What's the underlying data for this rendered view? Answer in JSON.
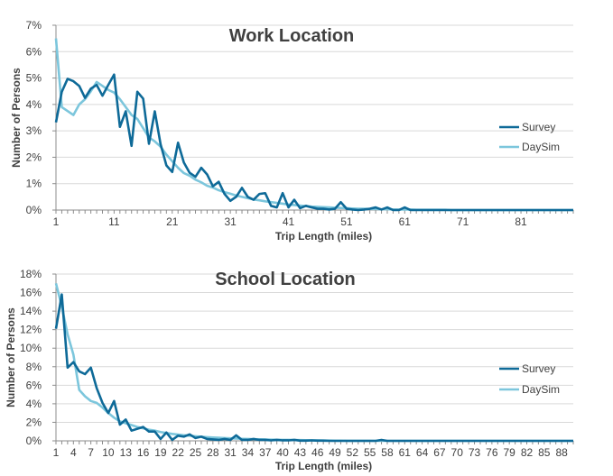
{
  "colors": {
    "survey": "#0e6a98",
    "daysim": "#7cc6dc",
    "grid": "#d9d9d9",
    "axis": "#8c8c8c"
  },
  "chart_data": [
    {
      "type": "line",
      "title": "Work Location",
      "xlabel": "Trip Length (miles)",
      "ylabel": "Number of Persons",
      "xlim": [
        1,
        90
      ],
      "ylim": [
        0,
        7
      ],
      "yticks": [
        "0%",
        "1%",
        "2%",
        "3%",
        "4%",
        "5%",
        "6%",
        "7%"
      ],
      "xtick_labels": [
        "1",
        "11",
        "21",
        "31",
        "41",
        "51",
        "61",
        "71",
        "81"
      ],
      "xtick_step": 10,
      "legend_position": "right",
      "grid": true,
      "series": [
        {
          "name": "Survey",
          "values": [
            3.32,
            4.48,
            4.97,
            4.88,
            4.7,
            4.25,
            4.6,
            4.74,
            4.33,
            4.74,
            5.13,
            3.15,
            3.74,
            2.43,
            4.48,
            4.22,
            2.51,
            3.74,
            2.49,
            1.69,
            1.44,
            2.55,
            1.8,
            1.41,
            1.26,
            1.6,
            1.35,
            0.9,
            1.07,
            0.61,
            0.35,
            0.5,
            0.84,
            0.5,
            0.39,
            0.61,
            0.64,
            0.16,
            0.1,
            0.64,
            0.1,
            0.39,
            0.07,
            0.16,
            0.1,
            0.05,
            0.05,
            0.02,
            0.05,
            0.3,
            0.05,
            0.02,
            0,
            0.02,
            0.05,
            0.1,
            0.02,
            0.1,
            0,
            0,
            0.1,
            0,
            0,
            0,
            0,
            0,
            0,
            0,
            0,
            0,
            0,
            0,
            0,
            0,
            0,
            0,
            0,
            0,
            0,
            0,
            0,
            0,
            0,
            0,
            0,
            0,
            0,
            0,
            0,
            0
          ]
        },
        {
          "name": "DaySim",
          "values": [
            6.5,
            3.9,
            3.75,
            3.6,
            4.0,
            4.2,
            4.5,
            4.85,
            4.7,
            4.55,
            4.45,
            4.2,
            3.9,
            3.6,
            3.45,
            3.1,
            2.75,
            2.6,
            2.4,
            2.1,
            1.85,
            1.6,
            1.4,
            1.3,
            1.15,
            1.05,
            0.92,
            0.85,
            0.75,
            0.68,
            0.62,
            0.55,
            0.5,
            0.45,
            0.4,
            0.37,
            0.33,
            0.3,
            0.27,
            0.24,
            0.21,
            0.19,
            0.17,
            0.15,
            0.13,
            0.12,
            0.11,
            0.1,
            0.09,
            0.08,
            0.07,
            0.06,
            0.05,
            0.05,
            0.04,
            0.04,
            0.03,
            0.03,
            0.02,
            0.02,
            0.02,
            0.02,
            0.01,
            0.01,
            0.01,
            0.01,
            0.01,
            0.01,
            0,
            0,
            0,
            0,
            0,
            0,
            0,
            0,
            0,
            0,
            0,
            0,
            0,
            0,
            0,
            0,
            0,
            0,
            0,
            0,
            0,
            0
          ]
        }
      ]
    },
    {
      "type": "line",
      "title": "School Location",
      "xlabel": "Trip Length (miles)",
      "ylabel": "Number of Persons",
      "xlim": [
        1,
        90
      ],
      "ylim": [
        0,
        18
      ],
      "yticks": [
        "0%",
        "2%",
        "4%",
        "6%",
        "8%",
        "10%",
        "12%",
        "14%",
        "16%",
        "18%"
      ],
      "xtick_labels": [
        "1",
        "4",
        "7",
        "10",
        "13",
        "16",
        "19",
        "22",
        "25",
        "28",
        "31",
        "34",
        "37",
        "40",
        "43",
        "46",
        "49",
        "52",
        "55",
        "58",
        "61",
        "64",
        "67",
        "70",
        "73",
        "76",
        "79",
        "82",
        "85",
        "88"
      ],
      "xtick_step": 3,
      "legend_position": "right",
      "grid": true,
      "series": [
        {
          "name": "Survey",
          "values": [
            12.1,
            15.8,
            7.9,
            8.5,
            7.5,
            7.2,
            7.9,
            5.7,
            4.1,
            3.0,
            4.3,
            1.75,
            2.3,
            1.1,
            1.3,
            1.5,
            1.0,
            1.0,
            0.2,
            0.9,
            0.1,
            0.55,
            0.45,
            0.7,
            0.3,
            0.45,
            0.2,
            0.15,
            0.1,
            0.2,
            0.1,
            0.6,
            0.1,
            0.1,
            0.2,
            0.1,
            0.1,
            0.05,
            0.1,
            0.05,
            0.05,
            0.1,
            0.02,
            0.02,
            0.05,
            0.02,
            0.02,
            0,
            0,
            0,
            0,
            0,
            0,
            0,
            0,
            0,
            0.1,
            0,
            0,
            0,
            0,
            0,
            0,
            0,
            0,
            0,
            0,
            0,
            0,
            0,
            0,
            0,
            0,
            0,
            0,
            0,
            0,
            0,
            0,
            0,
            0,
            0,
            0,
            0,
            0,
            0,
            0,
            0,
            0,
            0
          ]
        },
        {
          "name": "DaySim",
          "values": [
            17.0,
            14.5,
            11.5,
            9.3,
            5.5,
            4.8,
            4.3,
            4.1,
            3.6,
            3.0,
            2.5,
            2.1,
            1.9,
            1.7,
            1.5,
            1.35,
            1.2,
            1.1,
            0.95,
            0.85,
            0.75,
            0.68,
            0.6,
            0.55,
            0.5,
            0.45,
            0.4,
            0.36,
            0.33,
            0.3,
            0.27,
            0.25,
            0.22,
            0.2,
            0.18,
            0.16,
            0.15,
            0.13,
            0.12,
            0.11,
            0.1,
            0.09,
            0.08,
            0.07,
            0.06,
            0.05,
            0.04,
            0.03,
            0.02,
            0.02,
            0.01,
            0.01,
            0.01,
            0.01,
            0.01,
            0,
            0,
            0,
            0,
            0,
            0,
            0,
            0,
            0,
            0,
            0,
            0,
            0,
            0,
            0,
            0,
            0,
            0,
            0,
            0,
            0,
            0,
            0,
            0,
            0,
            0,
            0,
            0,
            0,
            0,
            0,
            0,
            0,
            0,
            0
          ]
        }
      ]
    }
  ]
}
